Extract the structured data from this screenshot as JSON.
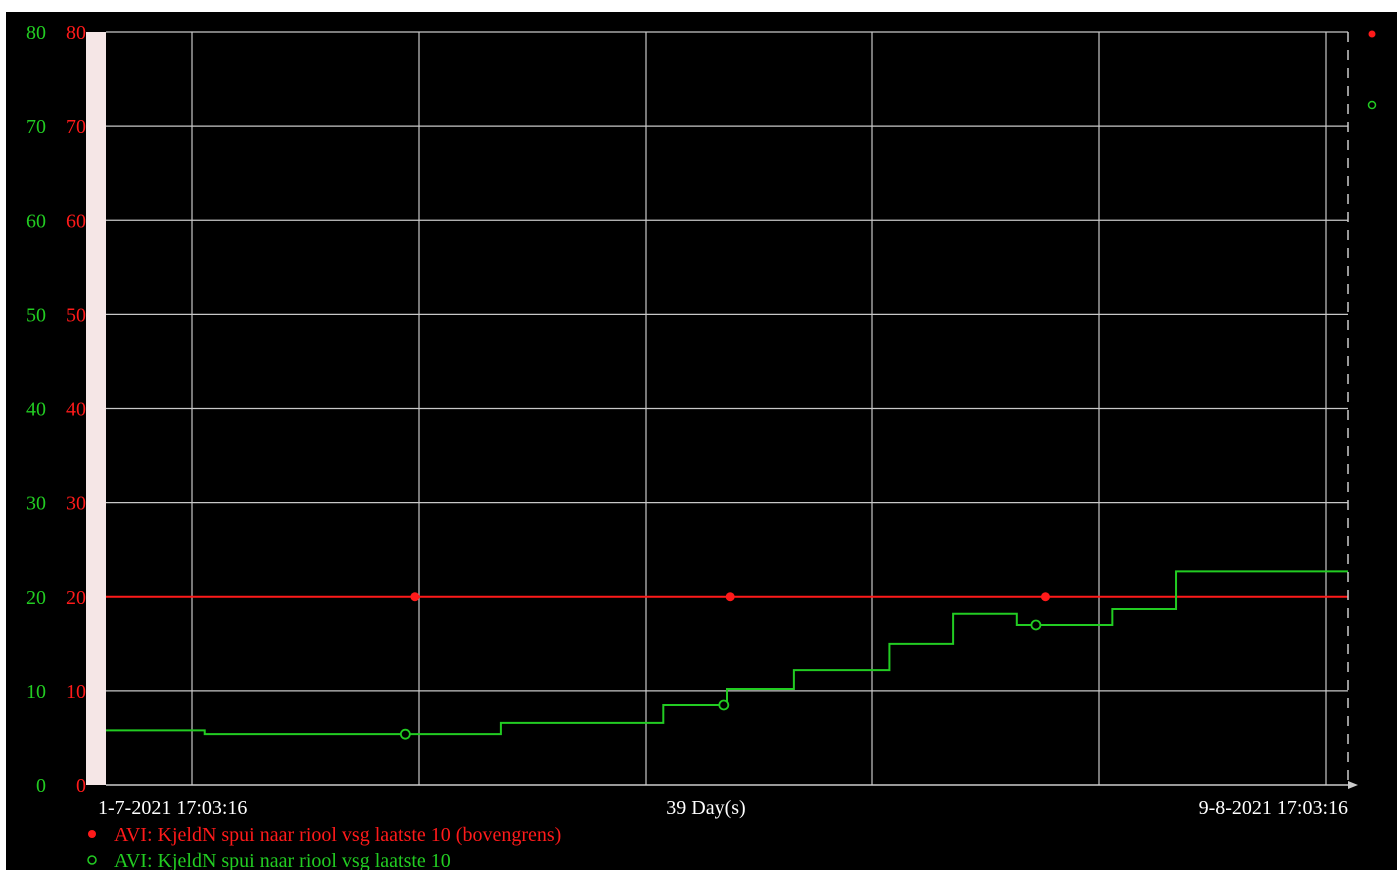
{
  "chart_data": {
    "type": "line",
    "x_start_label": "1-7-2021 17:03:16",
    "x_mid_label": "39 Day(s)",
    "x_end_label": "9-8-2021 17:03:16",
    "xlim_days": [
      0,
      39
    ],
    "ylim": [
      0,
      80
    ],
    "y_ticks": [
      0,
      10,
      20,
      30,
      40,
      50,
      60,
      70,
      80
    ],
    "grid": true,
    "legend_position": "bottom-left",
    "series": [
      {
        "name": "AVI: KjeldN spui naar riool vsg laatste 10 (bovengrens)",
        "color": "#ff1a1a",
        "marker": "filled-circle",
        "step": true,
        "x": [
          0,
          39
        ],
        "y": [
          20,
          20
        ],
        "marker_x": [
          9.7,
          19.6,
          29.5
        ],
        "marker_y": [
          20,
          20,
          20
        ]
      },
      {
        "name": "AVI: KjeldN spui naar riool vsg laatste 10",
        "color": "#22cc22",
        "marker": "open-circle",
        "step": true,
        "x": [
          0,
          3.1,
          12.4,
          17.5,
          19.5,
          21.6,
          24.6,
          26.6,
          28.6,
          31.6,
          33.6,
          39
        ],
        "y": [
          5.8,
          5.4,
          6.6,
          8.5,
          10.2,
          12.2,
          15.0,
          18.2,
          17.0,
          18.7,
          22.7,
          22.7
        ],
        "marker_x": [
          9.4,
          19.4,
          29.2
        ],
        "marker_y": [
          5.4,
          8.5,
          17.0
        ]
      }
    ]
  }
}
